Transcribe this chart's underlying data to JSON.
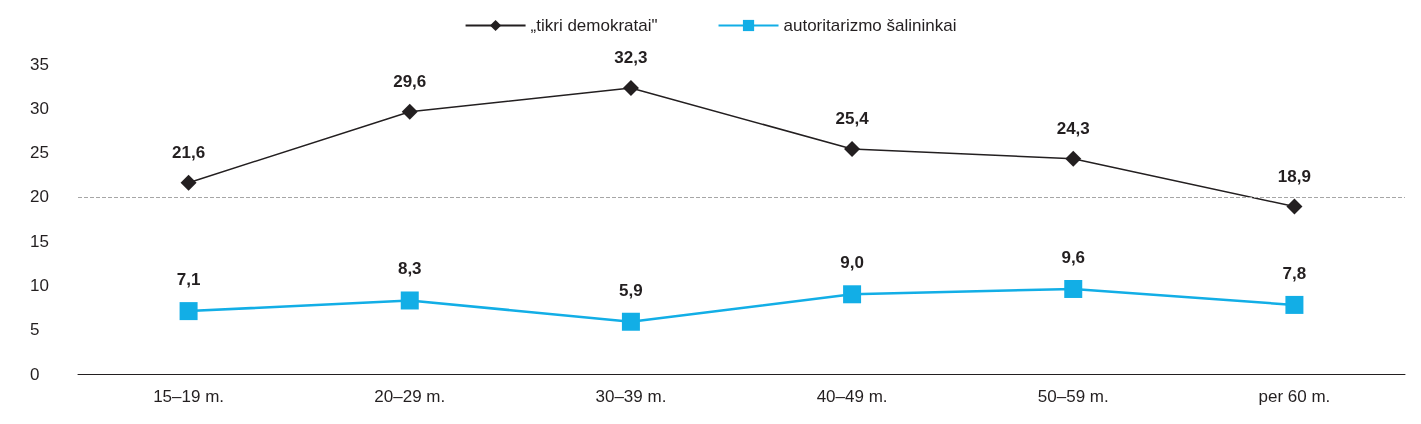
{
  "chart_data": {
    "type": "line",
    "categories": [
      "15–19 m.",
      "20–29 m.",
      "30–39 m.",
      "40–49 m.",
      "50–59 m.",
      "per 60 m."
    ],
    "series": [
      {
        "name": "„tikri demokratai\"",
        "color": "#231f20",
        "marker": "diamond",
        "values": [
          21.6,
          29.6,
          32.3,
          25.4,
          24.3,
          18.9
        ],
        "value_labels": [
          "21,6",
          "29,6",
          "32,3",
          "25,4",
          "24,3",
          "18,9"
        ]
      },
      {
        "name": "autoritarizmo šalininkai",
        "color": "#12aee6",
        "marker": "square",
        "values": [
          7.1,
          8.3,
          5.9,
          9.0,
          9.6,
          7.8
        ],
        "value_labels": [
          "7,1",
          "8,3",
          "5,9",
          "9,0",
          "9,6",
          "7,8"
        ]
      }
    ],
    "ylim": [
      0,
      35
    ],
    "yticks": [
      0,
      5,
      10,
      15,
      20,
      25,
      30,
      35
    ],
    "grid": false,
    "legend": "top",
    "ref_lines": [
      {
        "axis": "y",
        "value": 20,
        "color": "#a6a6a6",
        "line_style": "dashed"
      }
    ]
  }
}
